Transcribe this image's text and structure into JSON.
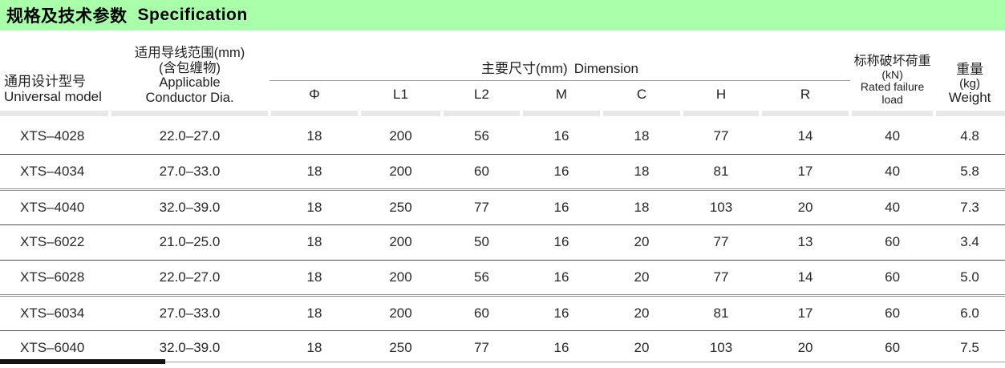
{
  "title": {
    "zh": "规格及技术参数",
    "en": "Specification"
  },
  "colors": {
    "title_bar_bg": "#aaffaa",
    "header_underline_bar": "#e8e8e8",
    "accent_rule": "#141414"
  },
  "table": {
    "header": {
      "model": {
        "zh": "通用设计型号",
        "en": "Universal  model"
      },
      "conductor": [
        "适用导线范围(mm)",
        "(含包缠物)",
        "Applicable",
        "Conductor Dia."
      ],
      "dimension_group": {
        "zh": "主要尺寸(mm)",
        "en": "Dimension"
      },
      "dimension_cols": [
        "Φ",
        "L1",
        "L2",
        "M",
        "C",
        "H",
        "R"
      ],
      "load": [
        "标称破坏荷重",
        "(kN)",
        "Rated failure load"
      ],
      "weight": [
        "重量",
        "(kg)",
        "Weight"
      ]
    },
    "rows": [
      {
        "model": "XTS–4028",
        "dia": "22.0–27.0",
        "values": [
          "18",
          "200",
          "56",
          "16",
          "18",
          "77",
          "14",
          "40",
          "4.8"
        ]
      },
      {
        "model": "XTS–4034",
        "dia": "27.0–33.0",
        "values": [
          "18",
          "200",
          "60",
          "16",
          "18",
          "81",
          "17",
          "40",
          "5.8"
        ]
      },
      {
        "model": "XTS–4040",
        "dia": "32.0–39.0",
        "values": [
          "18",
          "250",
          "77",
          "16",
          "18",
          "103",
          "20",
          "40",
          "7.3"
        ]
      },
      {
        "model": "XTS–6022",
        "dia": "21.0–25.0",
        "values": [
          "18",
          "200",
          "50",
          "16",
          "20",
          "77",
          "13",
          "60",
          "3.4"
        ]
      },
      {
        "model": "XTS–6028",
        "dia": "22.0–27.0",
        "values": [
          "18",
          "200",
          "56",
          "16",
          "20",
          "77",
          "14",
          "60",
          "5.0"
        ]
      },
      {
        "model": "XTS–6034",
        "dia": "27.0–33.0",
        "values": [
          "18",
          "200",
          "60",
          "16",
          "20",
          "81",
          "17",
          "60",
          "6.0"
        ]
      },
      {
        "model": "XTS–6040",
        "dia": "32.0–39.0",
        "values": [
          "18",
          "250",
          "77",
          "16",
          "20",
          "103",
          "20",
          "60",
          "7.5"
        ]
      }
    ]
  }
}
